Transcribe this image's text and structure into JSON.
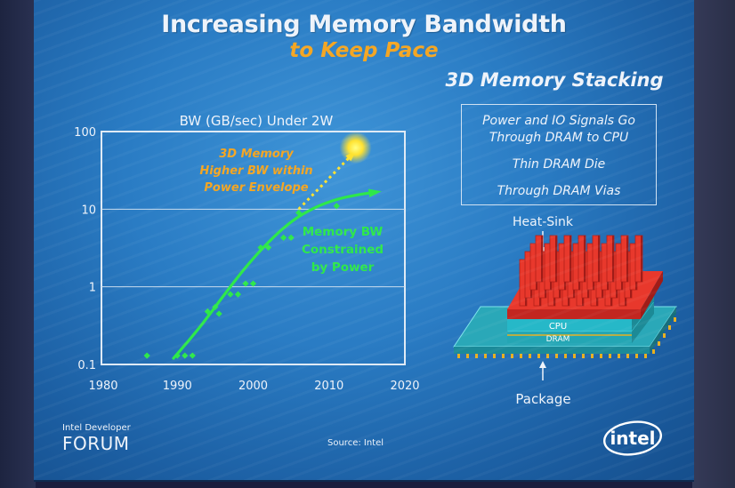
{
  "slide": {
    "title": "Increasing Memory Bandwidth",
    "subtitle": "to Keep Pace",
    "source": "Source: Intel",
    "footer_logo_line1": "Intel Developer",
    "footer_logo_line2": "FORUM",
    "brand_logo": "intel"
  },
  "chart_data": {
    "type": "scatter",
    "title": "BW (GB/sec) Under 2W",
    "xlabel": "",
    "ylabel": "",
    "x_ticks": [
      "1980",
      "1990",
      "2000",
      "2010",
      "2020"
    ],
    "y_ticks": [
      "0.1",
      "1",
      "10",
      "100"
    ],
    "xlim": [
      1980,
      2020
    ],
    "ylim": [
      0.1,
      100
    ],
    "y_scale": "log",
    "grid": "horizontal",
    "series": [
      {
        "name": "",
        "values": [
          {
            "x": 1986,
            "y": 0.13
          },
          {
            "x": 1990,
            "y": 0.13
          },
          {
            "x": 1991,
            "y": 0.13
          },
          {
            "x": 1992,
            "y": 0.13
          },
          {
            "x": 1994,
            "y": 0.48
          },
          {
            "x": 1995,
            "y": 0.55
          },
          {
            "x": 1995.5,
            "y": 0.45
          },
          {
            "x": 1997,
            "y": 0.8
          },
          {
            "x": 1998,
            "y": 0.8
          },
          {
            "x": 1999,
            "y": 1.1
          },
          {
            "x": 2000,
            "y": 1.1
          },
          {
            "x": 2001,
            "y": 3.2
          },
          {
            "x": 2002,
            "y": 3.2
          },
          {
            "x": 2004,
            "y": 4.3
          },
          {
            "x": 2005,
            "y": 4.3
          },
          {
            "x": 2006,
            "y": 9.0
          },
          {
            "x": 2011,
            "y": 11.0
          }
        ]
      }
    ],
    "trend_line": {
      "x": [
        1989.5,
        1993,
        1996,
        1999,
        2002,
        2005,
        2008,
        2011,
        2014,
        2016
      ],
      "y": [
        0.12,
        0.3,
        0.75,
        1.8,
        3.8,
        7.0,
        10.5,
        13.5,
        15.5,
        16.5
      ]
    },
    "projection": {
      "x": [
        2006,
        2013
      ],
      "y": [
        10,
        50
      ]
    },
    "projection_point": {
      "x": 2013.5,
      "y": 62
    },
    "annotations": {
      "memory_3d": [
        "3D Memory",
        "Higher BW within",
        "Power Envelope"
      ],
      "memory_bw": [
        "Memory BW",
        "Constrained",
        "by Power"
      ]
    },
    "colors": {
      "points": "#2ee84a",
      "trend": "#2ee84a",
      "projection": "#ffe230",
      "annotation_3d": "#f4a623",
      "annotation_bw": "#2ee84a",
      "grid": "#c9dcee"
    }
  },
  "stack_diagram": {
    "title": "3D Memory Stacking",
    "info_lines": [
      "Power and IO Signals Go",
      "Through DRAM to CPU",
      "Thin DRAM Die",
      "Through DRAM Vias"
    ],
    "heat_sink_label": "Heat-Sink",
    "cpu_label": "CPU",
    "dram_label": "DRAM",
    "package_label": "Package",
    "colors": {
      "heat_sink": "#e8382c",
      "cpu": "#26b8c8",
      "package": "#2aa8b8",
      "pins": "#e8b020"
    }
  }
}
